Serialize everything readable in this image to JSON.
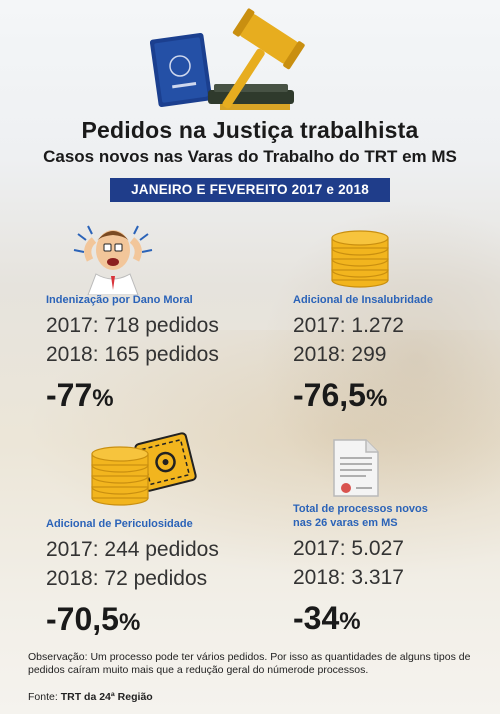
{
  "header": {
    "title": "Pedidos na Justiça trabalhista",
    "subtitle": "Casos novos nas Varas do Trabalho do TRT em MS",
    "period": "JANEIRO E FEVEREITO 2017 e 2018"
  },
  "cards": [
    {
      "label": "Indenização por Dano Moral",
      "line_2017": "2017: 718 pedidos",
      "line_2018": "2018: 165 pedidos",
      "delta_num": "-77",
      "delta_pct": "%",
      "icon": "stressed-man-icon"
    },
    {
      "label": "Adicional de Insalubridade",
      "line_2017": "2017: 1.272",
      "line_2018": "2018: 299",
      "delta_num": "-76,5",
      "delta_pct": "%",
      "icon": "coin-stack-icon"
    },
    {
      "label": "Adicional de Periculosidade",
      "line_2017": "2017: 244 pedidos",
      "line_2018": "2018: 72 pedidos",
      "delta_num": "-70,5",
      "delta_pct": "%",
      "icon": "coins-hazard-sign-icon"
    },
    {
      "label_line1": "Total de processos novos",
      "label_line2": "nas 26 varas em MS",
      "line_2017": "2017: 5.027",
      "line_2018": "2018: 3.317",
      "delta_num": "-34",
      "delta_pct": "%",
      "icon": "document-icon"
    }
  ],
  "note": "Observação: Um processo pode ter vários pedidos. Por isso as quantidades de alguns tipos de pedidos caíram muito mais que a redução geral do númerode processos.",
  "source": {
    "prefix": "Fonte:",
    "value": "TRT da 24ª Região"
  },
  "colors": {
    "banner": "#1f3d8a",
    "label_blue": "#2b63b8",
    "gold": "#f2b51e"
  }
}
